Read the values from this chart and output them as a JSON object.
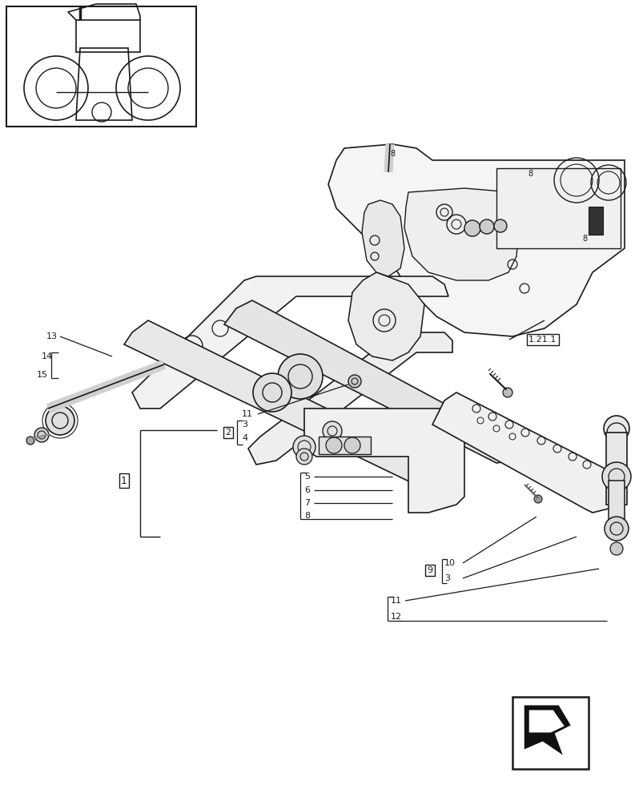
{
  "bg_color": "#ffffff",
  "line_color": "#1a1a1a",
  "fig_width": 8.04,
  "fig_height": 10.0,
  "dpi": 100
}
